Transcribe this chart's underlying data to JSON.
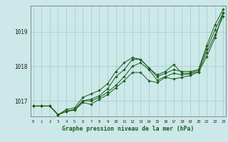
{
  "title": "Graphe pression niveau de la mer (hPa)",
  "background_color": "#cce8e8",
  "grid_color": "#aacfcf",
  "line_color": "#1a5c1a",
  "x_ticks": [
    0,
    1,
    2,
    3,
    4,
    5,
    6,
    7,
    8,
    9,
    10,
    11,
    12,
    13,
    14,
    15,
    16,
    17,
    18,
    19,
    20,
    21,
    22,
    23
  ],
  "y_ticks": [
    1017,
    1018,
    1019
  ],
  "ylim": [
    1016.55,
    1019.75
  ],
  "xlim": [
    -0.3,
    23.3
  ],
  "line_top": [
    1016.85,
    1016.85,
    1016.85,
    1016.6,
    1016.75,
    1016.8,
    1017.1,
    1017.2,
    1017.3,
    1017.5,
    1017.85,
    1018.1,
    1018.25,
    1018.2,
    1017.95,
    1017.75,
    1017.85,
    1018.05,
    1017.8,
    1017.8,
    1017.9,
    1018.6,
    1019.2,
    1019.65
  ],
  "line_mid1": [
    1016.85,
    1016.85,
    1016.85,
    1016.6,
    1016.7,
    1016.75,
    1017.0,
    1017.05,
    1017.15,
    1017.35,
    1017.7,
    1017.9,
    1018.2,
    1018.2,
    1017.95,
    1017.7,
    1017.8,
    1017.9,
    1017.85,
    1017.85,
    1017.9,
    1018.5,
    1019.05,
    1019.55
  ],
  "line_mid2": [
    1016.85,
    1016.85,
    1016.85,
    1016.6,
    1016.7,
    1016.75,
    1017.0,
    1017.0,
    1017.1,
    1017.25,
    1017.45,
    1017.7,
    1018.0,
    1018.1,
    1017.9,
    1017.6,
    1017.7,
    1017.8,
    1017.75,
    1017.78,
    1017.85,
    1018.4,
    1018.9,
    1019.45
  ],
  "line_low": [
    1016.85,
    1016.85,
    1016.85,
    1016.6,
    1016.7,
    1016.73,
    1016.95,
    1016.9,
    1017.05,
    1017.18,
    1017.38,
    1017.58,
    1017.82,
    1017.82,
    1017.58,
    1017.53,
    1017.68,
    1017.63,
    1017.68,
    1017.73,
    1017.83,
    1018.28,
    1018.82,
    1019.55
  ]
}
